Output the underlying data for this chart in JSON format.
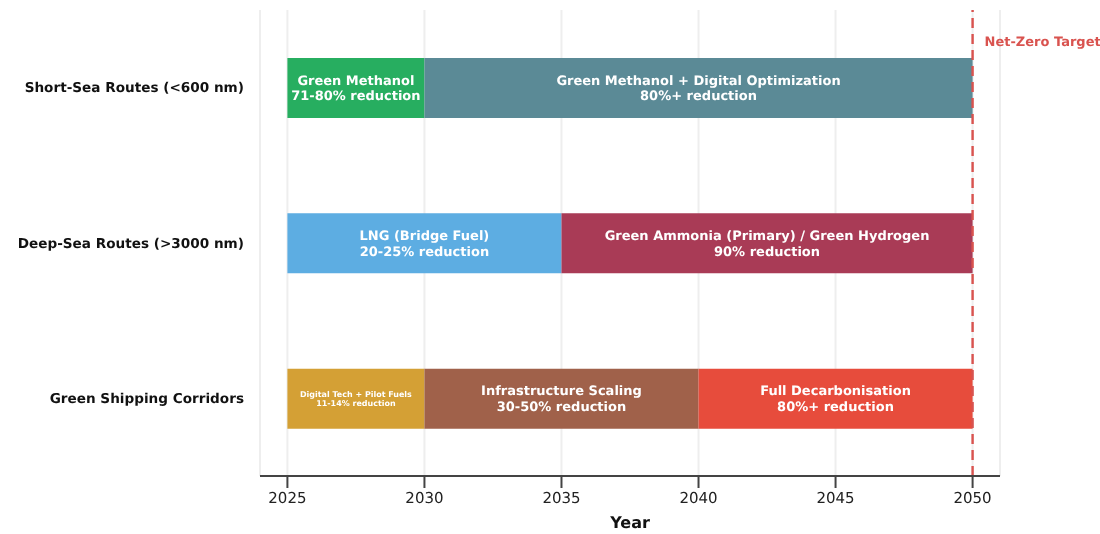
{
  "chart_data": {
    "type": "bar",
    "orientation": "horizontal",
    "categories": [
      "Short-Sea Routes (<600 nm)",
      "Deep-Sea Routes (>3000 nm)",
      "Green Shipping Corridors"
    ],
    "series": [
      {
        "name": "Green Methanol\n71-80% reduction",
        "color": "#27ae60",
        "base": [
          2025,
          null,
          null
        ],
        "values": [
          5,
          null,
          null
        ]
      },
      {
        "name": "Green Methanol + Digital Optimization\n80%+ reduction",
        "color": "#5b8a96",
        "base": [
          2030,
          null,
          null
        ],
        "values": [
          20,
          null,
          null
        ]
      },
      {
        "name": "LNG (Bridge Fuel)\n20-25% reduction",
        "color": "#5dade2",
        "base": [
          null,
          2025,
          null
        ],
        "values": [
          null,
          10,
          null
        ]
      },
      {
        "name": "Green Ammonia (Primary) / Green Hydrogen\n90% reduction",
        "color": "#a93b56",
        "base": [
          null,
          2035,
          null
        ],
        "values": [
          null,
          15,
          null
        ]
      },
      {
        "name": "Digital Tech + Pilot Fuels\n11-14% reduction",
        "color": "#d4a035",
        "base": [
          null,
          null,
          2025
        ],
        "values": [
          null,
          null,
          5
        ]
      },
      {
        "name": "Infrastructure Scaling\n30-50% reduction",
        "color": "#a0614a",
        "base": [
          null,
          null,
          2030
        ],
        "values": [
          null,
          null,
          10
        ]
      },
      {
        "name": "Full Decarbonisation\n80%+ reduction",
        "color": "#e74c3c",
        "base": [
          null,
          null,
          2040
        ],
        "values": [
          null,
          null,
          10
        ]
      }
    ],
    "xlabel": "Year",
    "xlim": [
      2024,
      2051
    ],
    "xticks": [
      2025,
      2030,
      2035,
      2040,
      2045,
      2050
    ],
    "grid": "x",
    "legend": false,
    "ref_lines": [
      {
        "axis": "x",
        "value": 2050,
        "label": "Net-Zero Target",
        "color": "#d9534f",
        "line_style": "dashed"
      }
    ]
  }
}
